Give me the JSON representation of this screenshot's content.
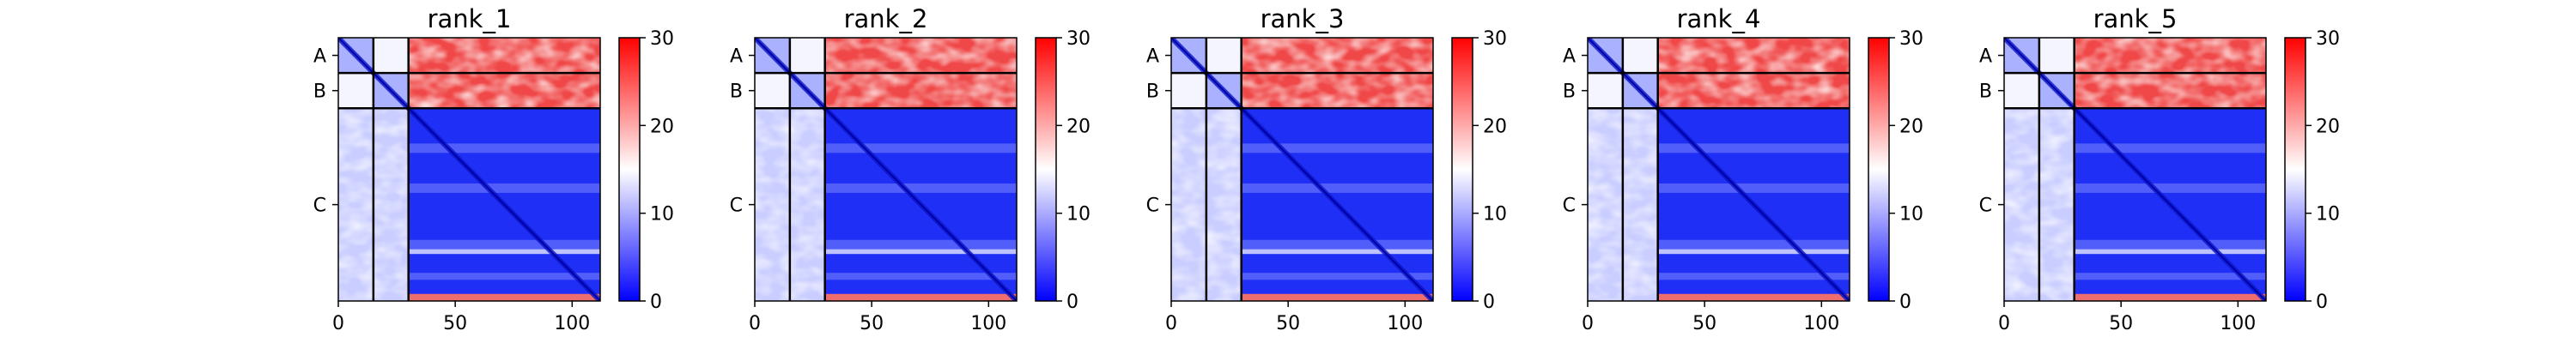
{
  "chart_data": [
    {
      "type": "heatmap",
      "title": "rank_1",
      "x_ticks": [
        "0",
        "50",
        "100"
      ],
      "x_tick_values": [
        0,
        50,
        100
      ],
      "y_tick_labels": [
        "A",
        "B",
        "C"
      ],
      "colorbar": {
        "min": 0,
        "max": 30,
        "ticks": [
          "0",
          "10",
          "20",
          "30"
        ],
        "colormap": "bwr"
      },
      "chains": {
        "A": [
          0,
          15
        ],
        "B": [
          15,
          30
        ],
        "C": [
          30,
          112
        ]
      },
      "xlim": [
        0,
        112
      ],
      "ylim": [
        0,
        112
      ]
    },
    {
      "type": "heatmap",
      "title": "rank_2",
      "x_ticks": [
        "0",
        "50",
        "100"
      ],
      "x_tick_values": [
        0,
        50,
        100
      ],
      "y_tick_labels": [
        "A",
        "B",
        "C"
      ],
      "colorbar": {
        "min": 0,
        "max": 30,
        "ticks": [
          "0",
          "10",
          "20",
          "30"
        ],
        "colormap": "bwr"
      },
      "chains": {
        "A": [
          0,
          15
        ],
        "B": [
          15,
          30
        ],
        "C": [
          30,
          112
        ]
      },
      "xlim": [
        0,
        112
      ],
      "ylim": [
        0,
        112
      ]
    },
    {
      "type": "heatmap",
      "title": "rank_3",
      "x_ticks": [
        "0",
        "50",
        "100"
      ],
      "x_tick_values": [
        0,
        50,
        100
      ],
      "y_tick_labels": [
        "A",
        "B",
        "C"
      ],
      "colorbar": {
        "min": 0,
        "max": 30,
        "ticks": [
          "0",
          "10",
          "20",
          "30"
        ],
        "colormap": "bwr"
      },
      "chains": {
        "A": [
          0,
          15
        ],
        "B": [
          15,
          30
        ],
        "C": [
          30,
          112
        ]
      },
      "xlim": [
        0,
        112
      ],
      "ylim": [
        0,
        112
      ]
    },
    {
      "type": "heatmap",
      "title": "rank_4",
      "x_ticks": [
        "0",
        "50",
        "100"
      ],
      "x_tick_values": [
        0,
        50,
        100
      ],
      "y_tick_labels": [
        "A",
        "B",
        "C"
      ],
      "colorbar": {
        "min": 0,
        "max": 30,
        "ticks": [
          "0",
          "10",
          "20",
          "30"
        ],
        "colormap": "bwr"
      },
      "chains": {
        "A": [
          0,
          15
        ],
        "B": [
          15,
          30
        ],
        "C": [
          30,
          112
        ]
      },
      "xlim": [
        0,
        112
      ],
      "ylim": [
        0,
        112
      ]
    },
    {
      "type": "heatmap",
      "title": "rank_5",
      "x_ticks": [
        "0",
        "50",
        "100"
      ],
      "x_tick_values": [
        0,
        50,
        100
      ],
      "y_tick_labels": [
        "A",
        "B",
        "C"
      ],
      "colorbar": {
        "min": 0,
        "max": 30,
        "ticks": [
          "0",
          "10",
          "20",
          "30"
        ],
        "colormap": "bwr"
      },
      "chains": {
        "A": [
          0,
          15
        ],
        "B": [
          15,
          30
        ],
        "C": [
          30,
          112
        ]
      },
      "xlim": [
        0,
        112
      ],
      "ylim": [
        0,
        112
      ]
    }
  ],
  "colors": {
    "low": "#0000ff",
    "mid": "#ffffff",
    "high": "#ff0000",
    "divider": "#000000"
  }
}
